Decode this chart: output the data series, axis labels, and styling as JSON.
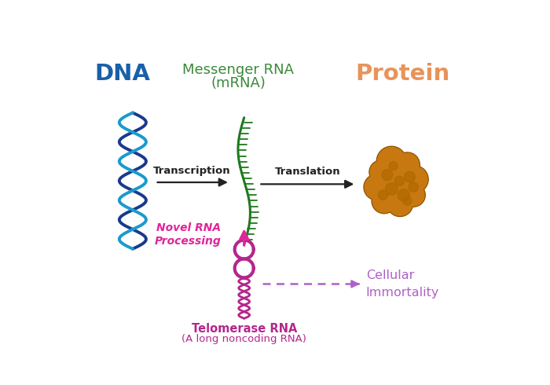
{
  "background_color": "#ffffff",
  "dna_label": "DNA",
  "dna_label_color": "#1a5fa8",
  "mrna_label_line1": "Messenger RNA",
  "mrna_label_line2": "(mRNA)",
  "mrna_label_color": "#3a8a3a",
  "protein_label": "Protein",
  "protein_label_color": "#e8935a",
  "transcription_label": "Transcription",
  "translation_label": "Translation",
  "arrow_color": "#222222",
  "novel_rna_line1": "Novel RNA",
  "novel_rna_line2": "Processing",
  "novel_rna_color": "#e0259a",
  "telomerase_line1": "Telomerase RNA",
  "telomerase_line2": "(A long noncoding RNA)",
  "telomerase_color": "#b5268c",
  "cellular_immortality_line1": "Cellular",
  "cellular_immortality_line2": "Immortality",
  "cellular_immortality_color": "#b060c8",
  "dna_helix_color1": "#1a3a8a",
  "dna_helix_color2": "#1a9acd",
  "dna_rung_color": "#2255aa",
  "mrna_backbone_color": "#1e7a1e",
  "mrna_teeth_color": "#1e7a1e",
  "protein_fill_color": "#c87810",
  "protein_outline_color": "#8a5000",
  "protein_shadow_color": "#b06800",
  "telomerase_rna_color": "#b5268c"
}
